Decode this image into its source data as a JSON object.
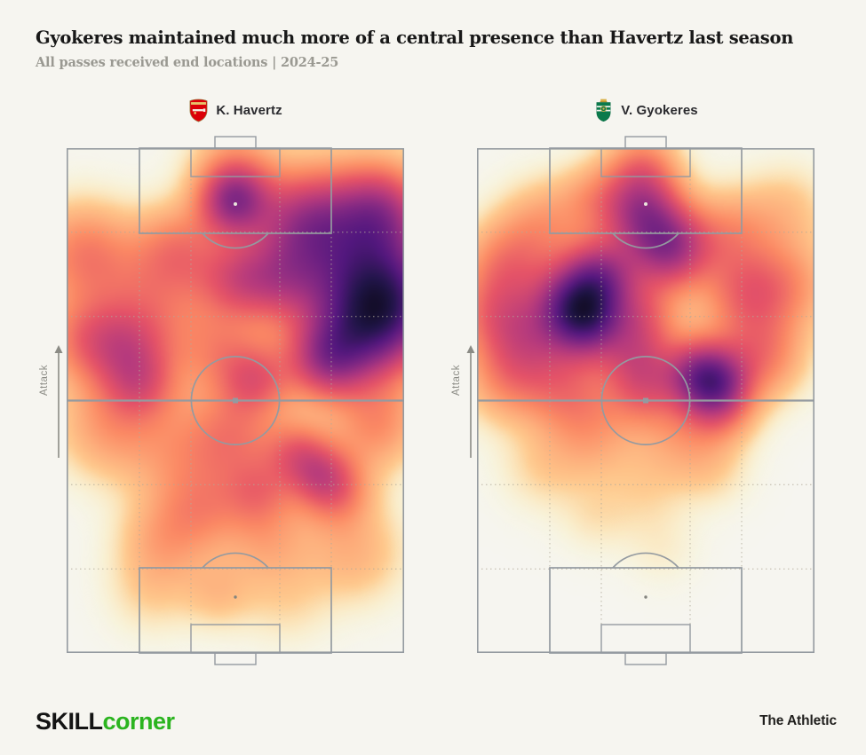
{
  "page": {
    "background": "#f6f5f0"
  },
  "header": {
    "title": "Gyokeres maintained much more of a central presence than Havertz last season",
    "subtitle": "All passes received end locations | 2024-25"
  },
  "pitches": [
    {
      "player_label": "K. Havertz",
      "crest": "arsenal-crest",
      "attack_label": "Attack"
    },
    {
      "player_label": "V. Gyokeres",
      "crest": "sporting-cp-crest",
      "attack_label": "Attack"
    }
  ],
  "footer": {
    "brand_skill": "SKILL",
    "brand_corner": "corner",
    "credit": "The Athletic"
  },
  "colors": {
    "background": "#f6f5f0",
    "pitch_line": "#949aa0",
    "dotted_grid": "#b1aa9a",
    "attack_gray": "#8b8b85",
    "brand_green": "#2bb41f",
    "heat_low": "#fcfdbf",
    "heat_mid": "#fb8661",
    "heat_high": "#1c1044"
  },
  "chart_data": [
    {
      "type": "heatmap",
      "title": "K. Havertz",
      "subtitle_context": "All passes received end locations | 2024-25",
      "colormap": "magma_r",
      "orientation": "vertical pitch, attacking upward",
      "coords": "kernels = [u, v, sigma, weight]; u: 0=left touchline, 1=right touchline; v: 0=attacking goal line (top), 1=own goal line (bottom)",
      "grid": {
        "vertical_dotted": "penalty-area and goal-area channel extensions",
        "horizontal_dotted": "sixths of pitch length",
        "halfway_line": "solid"
      },
      "kernels": [
        [
          0.495,
          0.105,
          0.048,
          1.0
        ],
        [
          0.5,
          0.03,
          0.06,
          0.3
        ],
        [
          0.85,
          0.21,
          0.105,
          1.0
        ],
        [
          0.97,
          0.3,
          0.08,
          0.75
        ],
        [
          0.9,
          0.36,
          0.075,
          0.85
        ],
        [
          0.77,
          0.42,
          0.055,
          0.8
        ],
        [
          0.7,
          0.14,
          0.065,
          0.6
        ],
        [
          0.93,
          0.12,
          0.06,
          0.55
        ],
        [
          0.63,
          0.26,
          0.06,
          0.5
        ],
        [
          0.05,
          0.21,
          0.07,
          0.48
        ],
        [
          0.33,
          0.2,
          0.06,
          0.42
        ],
        [
          0.5,
          0.26,
          0.055,
          0.52
        ],
        [
          0.56,
          0.46,
          0.05,
          0.55
        ],
        [
          0.18,
          0.4,
          0.06,
          0.48
        ],
        [
          0.22,
          0.47,
          0.05,
          0.42
        ],
        [
          0.05,
          0.38,
          0.06,
          0.42
        ],
        [
          0.25,
          0.31,
          0.08,
          0.38
        ],
        [
          0.45,
          0.4,
          0.06,
          0.35
        ],
        [
          0.12,
          0.55,
          0.07,
          0.33
        ],
        [
          0.35,
          0.6,
          0.08,
          0.33
        ],
        [
          0.5,
          0.57,
          0.06,
          0.35
        ],
        [
          0.92,
          0.55,
          0.06,
          0.4
        ],
        [
          0.68,
          0.6,
          0.045,
          0.45
        ],
        [
          0.75,
          0.645,
          0.045,
          0.48
        ],
        [
          0.57,
          0.68,
          0.05,
          0.42
        ],
        [
          0.8,
          0.68,
          0.05,
          0.42
        ],
        [
          0.4,
          0.72,
          0.06,
          0.32
        ],
        [
          0.28,
          0.78,
          0.06,
          0.26
        ],
        [
          0.6,
          0.78,
          0.06,
          0.26
        ],
        [
          0.85,
          0.8,
          0.07,
          0.26
        ],
        [
          0.45,
          0.88,
          0.05,
          0.2
        ],
        [
          0.25,
          0.88,
          0.06,
          0.14
        ],
        [
          0.65,
          0.9,
          0.06,
          0.12
        ]
      ]
    },
    {
      "type": "heatmap",
      "title": "V. Gyokeres",
      "subtitle_context": "All passes received end locations | 2024-25",
      "colormap": "magma_r",
      "orientation": "vertical pitch, attacking upward",
      "coords": "kernels = [u, v, sigma, weight]; u: 0=left touchline, 1=right touchline; v: 0=attacking goal line (top), 1=own goal line (bottom)",
      "grid": {
        "vertical_dotted": "penalty-area and goal-area channel extensions",
        "horizontal_dotted": "sixths of pitch length",
        "halfway_line": "solid"
      },
      "kernels": [
        [
          0.49,
          0.125,
          0.055,
          0.92
        ],
        [
          0.57,
          0.2,
          0.055,
          1.05
        ],
        [
          0.37,
          0.25,
          0.05,
          0.88
        ],
        [
          0.29,
          0.305,
          0.055,
          1.1
        ],
        [
          0.33,
          0.35,
          0.05,
          0.85
        ],
        [
          0.65,
          0.445,
          0.05,
          0.85
        ],
        [
          0.71,
          0.465,
          0.045,
          0.75
        ],
        [
          0.49,
          0.035,
          0.05,
          0.45
        ],
        [
          0.09,
          0.23,
          0.06,
          0.48
        ],
        [
          0.05,
          0.33,
          0.06,
          0.48
        ],
        [
          0.16,
          0.38,
          0.06,
          0.52
        ],
        [
          0.49,
          0.33,
          0.05,
          0.5
        ],
        [
          0.47,
          0.41,
          0.05,
          0.52
        ],
        [
          0.79,
          0.29,
          0.06,
          0.48
        ],
        [
          0.92,
          0.27,
          0.065,
          0.38
        ],
        [
          0.84,
          0.41,
          0.06,
          0.52
        ],
        [
          0.49,
          0.48,
          0.05,
          0.48
        ],
        [
          0.27,
          0.48,
          0.06,
          0.46
        ],
        [
          0.09,
          0.46,
          0.06,
          0.38
        ],
        [
          0.72,
          0.52,
          0.05,
          0.42
        ],
        [
          0.75,
          0.17,
          0.06,
          0.38
        ],
        [
          0.2,
          0.15,
          0.06,
          0.33
        ],
        [
          0.35,
          0.1,
          0.05,
          0.3
        ],
        [
          0.6,
          0.57,
          0.06,
          0.28
        ],
        [
          0.35,
          0.57,
          0.06,
          0.28
        ],
        [
          0.2,
          0.63,
          0.06,
          0.16
        ],
        [
          0.5,
          0.68,
          0.06,
          0.13
        ],
        [
          0.7,
          0.64,
          0.05,
          0.13
        ],
        [
          0.35,
          0.73,
          0.05,
          0.1
        ],
        [
          0.55,
          0.8,
          0.05,
          0.07
        ],
        [
          0.92,
          0.12,
          0.06,
          0.2
        ]
      ]
    }
  ]
}
